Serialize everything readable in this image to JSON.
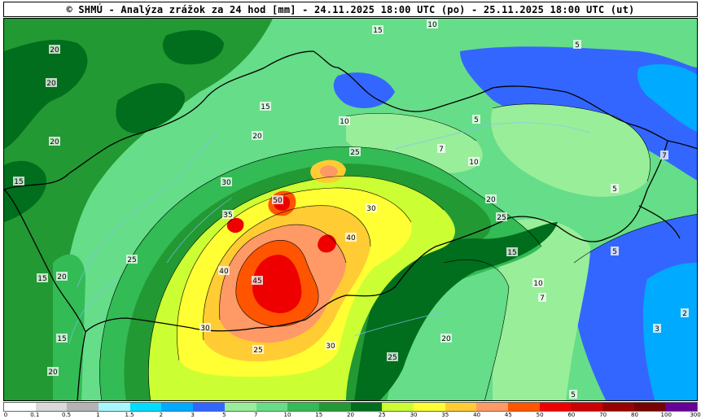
{
  "title": "© SHMÚ - Analýza zrážok za 24 hod [mm] - 24.11.2025 18:00 UTC (po) - 25.11.2025 18:00 UTC (ut)",
  "colors": {
    "c_0_1": "#ffffff",
    "c_0_5": "#d9d9d9",
    "c_1": "#b3b3b3",
    "c_1_5": "#a8f7ff",
    "c_2": "#00ddff",
    "c_3": "#00aaff",
    "c_5": "#3366ff",
    "c_7": "#99ee99",
    "c_10": "#66dd88",
    "c_15": "#33bb55",
    "c_20": "#229933",
    "c_25": "#006e1c",
    "c_30": "#ccff33",
    "c_35": "#ffff33",
    "c_40": "#ffcc33",
    "c_45": "#ff9966",
    "c_50": "#ff5500",
    "c_60": "#ee0000",
    "c_70": "#cc0000",
    "c_80": "#990000",
    "c_100": "#770000",
    "c_300": "#660099",
    "border": "#000000",
    "river": "#88bbff"
  },
  "legend": {
    "swatches": [
      "#ffffff",
      "#d9d9d9",
      "#b3b3b3",
      "#a8f7ff",
      "#00ddff",
      "#00aaff",
      "#3366ff",
      "#99ee99",
      "#66dd88",
      "#33bb55",
      "#229933",
      "#006e1c",
      "#ccff33",
      "#ffff33",
      "#ffcc33",
      "#ff9966",
      "#ff5500",
      "#ee0000",
      "#cc0000",
      "#990000",
      "#770000",
      "#660099"
    ],
    "ticks": [
      "0",
      "0.1",
      "0.5",
      "1",
      "1.5",
      "2",
      "3",
      "5",
      "7",
      "10",
      "15",
      "20",
      "25",
      "30",
      "35",
      "40",
      "45",
      "50",
      "60",
      "70",
      "80",
      "100",
      "300"
    ]
  },
  "contour_labels": {
    "l15a": "15",
    "l10a": "10",
    "l20a": "20",
    "l20b": "20",
    "l20c": "20",
    "l15b": "15",
    "l5a": "5",
    "l5b": "5",
    "l5c": "5",
    "l7a": "7",
    "l7b": "7",
    "l10b": "10",
    "l10c": "10",
    "l15c": "15",
    "l20d": "20",
    "l25a": "25",
    "l30a": "30",
    "l30b": "30",
    "l35a": "35",
    "l40a": "40",
    "l40b": "40",
    "l45a": "45",
    "l50a": "50",
    "l25b": "25",
    "l25c": "25",
    "l30c": "30",
    "l30d": "30",
    "l25d": "25",
    "l20e": "20",
    "l20f": "20",
    "l15d": "15",
    "l10d": "10",
    "l7c": "7",
    "l5d": "5",
    "l3a": "3",
    "l2a": "2",
    "l15e": "15",
    "l20g": "20",
    "l25e": "25",
    "l20h": "20",
    "l15f": "15",
    "l5e": "5"
  }
}
